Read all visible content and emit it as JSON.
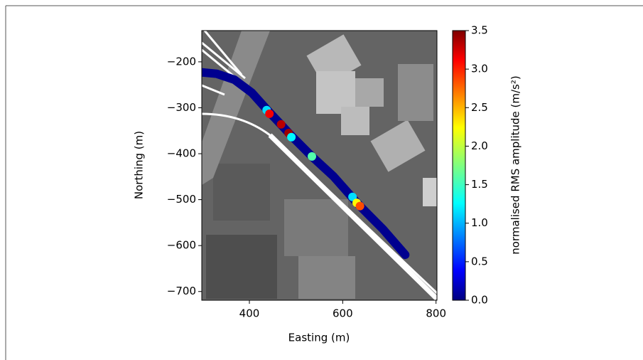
{
  "chart_data": {
    "type": "scatter",
    "xlabel": "Easting (m)",
    "ylabel": "Northing (m)",
    "colorbar_label": "normalised RMS amplitude (m/s²)",
    "xlim": [
      298,
      802
    ],
    "ylim": [
      -719,
      -132
    ],
    "xticks": [
      400,
      600,
      800
    ],
    "yticks": [
      {
        "value": -200,
        "label": "−200"
      },
      {
        "value": -300,
        "label": "−300"
      },
      {
        "value": -400,
        "label": "−400"
      },
      {
        "value": -500,
        "label": "−500"
      },
      {
        "value": -600,
        "label": "−600"
      },
      {
        "value": -700,
        "label": "−700"
      }
    ],
    "clim": [
      0,
      3.5
    ],
    "cticks": [
      {
        "value": 0,
        "label": "0.0"
      },
      0.5,
      {
        "value": 1,
        "label": "1.0"
      },
      1.5,
      {
        "value": 2,
        "label": "2.0"
      },
      2.5,
      {
        "value": 3,
        "label": "3.0"
      },
      3.5
    ],
    "track": {
      "color": "#00008f",
      "x": [
        298,
        330,
        368,
        405,
        443,
        469,
        489,
        534,
        580,
        621,
        640,
        686,
        734
      ],
      "y": [
        -223,
        -226,
        -239,
        -267,
        -310,
        -338,
        -360,
        -406,
        -449,
        -496,
        -517,
        -564,
        -620
      ]
    },
    "points": {
      "x": [
        437,
        443,
        468,
        484,
        490,
        534,
        621,
        630,
        637
      ],
      "y": [
        -305,
        -313,
        -336,
        -355,
        -364,
        -406,
        -494,
        -507,
        -514
      ],
      "values": [
        1.2,
        3.1,
        3.3,
        3.4,
        1.3,
        1.6,
        1.2,
        2.2,
        2.8
      ]
    }
  }
}
